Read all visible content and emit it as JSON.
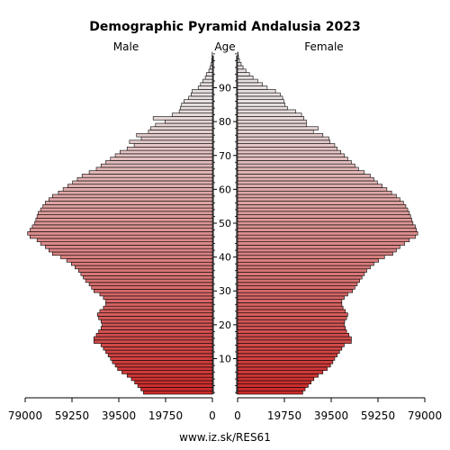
{
  "chart_data": {
    "type": "bar",
    "title": "Demographic Pyramid Andalusia 2023",
    "left_label": "Male",
    "center_label": "Age",
    "right_label": "Female",
    "source": "www.iz.sk/RES61",
    "xlim": [
      0,
      79000
    ],
    "x_ticks_left": [
      "79000",
      "59250",
      "39500",
      "19750",
      "0"
    ],
    "x_ticks_right": [
      "0",
      "19750",
      "39500",
      "59250",
      "79000"
    ],
    "x_tick_values": [
      79000,
      59250,
      39500,
      19750,
      0
    ],
    "age_ticks": [
      10,
      20,
      30,
      40,
      50,
      60,
      70,
      80,
      90
    ],
    "age_min": 0,
    "age_max": 100,
    "bar_gradient": {
      "young": "#cc2a2a",
      "old": "#e8e0e0"
    },
    "series": [
      {
        "name": "Male",
        "values": [
          29100,
          30200,
          31500,
          32800,
          34200,
          36000,
          38200,
          40000,
          41000,
          42200,
          43000,
          44000,
          45000,
          46000,
          47000,
          50000,
          50000,
          49000,
          48000,
          47000,
          46500,
          47000,
          48000,
          48500,
          47500,
          46000,
          45000,
          45000,
          46000,
          47500,
          50000,
          51000,
          52000,
          53500,
          54500,
          55500,
          56500,
          58000,
          59500,
          61500,
          64000,
          67500,
          69000,
          70500,
          72500,
          74000,
          77000,
          78000,
          77000,
          76000,
          75000,
          74500,
          74000,
          73500,
          72500,
          71500,
          70500,
          69000,
          67500,
          65000,
          63000,
          61000,
          59000,
          57000,
          55000,
          52000,
          49000,
          47000,
          45000,
          43000,
          41000,
          39000,
          36000,
          33000,
          35000,
          30000,
          32000,
          27000,
          26000,
          24000,
          20000,
          25000,
          17000,
          14000,
          13500,
          13000,
          12000,
          10000,
          9000,
          8500,
          6000,
          5000,
          4000,
          3000,
          2500,
          1500,
          900,
          500,
          300,
          150,
          80
        ]
      },
      {
        "name": "Female",
        "values": [
          27500,
          28500,
          29800,
          31000,
          32200,
          34000,
          36000,
          37800,
          39200,
          40200,
          41000,
          42000,
          43000,
          44000,
          45000,
          48000,
          48000,
          47000,
          46000,
          45500,
          45000,
          45200,
          46000,
          46500,
          45500,
          44500,
          44000,
          44000,
          45000,
          46500,
          48500,
          49500,
          50500,
          51500,
          52500,
          53500,
          54500,
          56000,
          57500,
          59500,
          62000,
          65500,
          67000,
          68500,
          70500,
          72500,
          75000,
          76000,
          75500,
          75000,
          74000,
          73500,
          73000,
          72500,
          71800,
          71000,
          70000,
          68500,
          67000,
          65000,
          63000,
          61000,
          59000,
          57500,
          56000,
          53500,
          51000,
          49500,
          48000,
          46500,
          45000,
          43500,
          42000,
          41000,
          39000,
          38500,
          36000,
          32000,
          34000,
          29000,
          29000,
          28000,
          27000,
          24500,
          21000,
          20000,
          19500,
          19000,
          18000,
          16000,
          12500,
          10500,
          8500,
          6500,
          5000,
          3500,
          2300,
          1500,
          800,
          400,
          200
        ]
      }
    ]
  }
}
